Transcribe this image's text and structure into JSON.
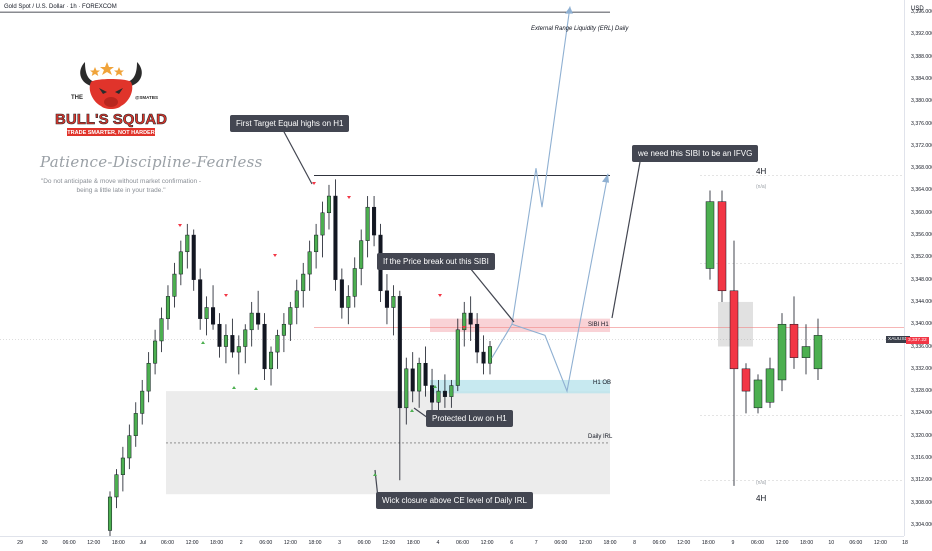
{
  "title": "Gold Spot / U.S. Dollar · 1h · FOREXCOM",
  "currency": "USD",
  "brand": {
    "logo_top": "THE",
    "logo_name": "BULL'S SQUAD",
    "logo_handle": "@SMATBS",
    "logo_slogan": "TRADE SMARTER, NOT HARDER",
    "tagline": "Patience-Discipline-Fearless",
    "note_line1": "\"Do not anticipate & move without market confirmation -",
    "note_line2": "being a little late in your trade.\""
  },
  "annotations": {
    "first_target": "First Target Equal highs on H1",
    "price_break": "If the Price break out this SIBI",
    "need_sibi": "we need this SIBI to be an IFVG",
    "protected_low": "Protected Low on H1",
    "wick_closure": "Wick closure above CE level of Daily IRL",
    "erl": "External Range Liquidity (ERL) Daily",
    "sibi_h1": "SIBI H1",
    "h1_ob": "H1 OB",
    "daily_irl": "Daily IRL",
    "tf_top": "4H",
    "tf_bottom": "4H",
    "na_top": "(n/a)",
    "na_bottom": "(n/a)",
    "price_tag": "XAUUSD",
    "price_tag_value": "3,337.22"
  },
  "chart_data": {
    "type": "candlestick",
    "symbol": "XAUUSD",
    "timeframe": "1h",
    "ylim": [
      3302,
      3398
    ],
    "y_ticks": [
      3304,
      3308,
      3312,
      3316,
      3320,
      3324,
      3328,
      3332,
      3336,
      3340,
      3344,
      3348,
      3352,
      3356,
      3360,
      3364,
      3368,
      3372,
      3376,
      3380,
      3384,
      3388,
      3392,
      3396
    ],
    "x_tick_labels": [
      "29",
      "30",
      "06:00",
      "12:00",
      "18:00",
      "Jul",
      "06:00",
      "12:00",
      "18:00",
      "2",
      "06:00",
      "12:00",
      "18:00",
      "3",
      "06:00",
      "12:00",
      "18:00",
      "4",
      "06:00",
      "12:00",
      "6",
      "7",
      "06:00",
      "12:00",
      "18:00",
      "8",
      "06:00",
      "12:00",
      "18:00",
      "9",
      "06:00",
      "12:00",
      "18:00",
      "10",
      "06:00",
      "12:00",
      "18"
    ],
    "h1_candles": [
      [
        3303,
        3310,
        3302,
        3309
      ],
      [
        3309,
        3314,
        3307,
        3313
      ],
      [
        3313,
        3318,
        3310,
        3316
      ],
      [
        3316,
        3322,
        3314,
        3320
      ],
      [
        3320,
        3326,
        3318,
        3324
      ],
      [
        3324,
        3330,
        3322,
        3328
      ],
      [
        3328,
        3335,
        3326,
        3333
      ],
      [
        3333,
        3339,
        3331,
        3337
      ],
      [
        3337,
        3343,
        3335,
        3341
      ],
      [
        3341,
        3347,
        3339,
        3345
      ],
      [
        3345,
        3351,
        3343,
        3349
      ],
      [
        3349,
        3355,
        3347,
        3353
      ],
      [
        3353,
        3358,
        3350,
        3356
      ],
      [
        3356,
        3357,
        3346,
        3348
      ],
      [
        3348,
        3350,
        3339,
        3341
      ],
      [
        3341,
        3345,
        3338,
        3343
      ],
      [
        3343,
        3347,
        3339,
        3340
      ],
      [
        3340,
        3342,
        3334,
        3336
      ],
      [
        3336,
        3340,
        3333,
        3338
      ],
      [
        3338,
        3341,
        3334,
        3335
      ],
      [
        3335,
        3338,
        3331,
        3336
      ],
      [
        3336,
        3340,
        3333,
        3339
      ],
      [
        3339,
        3344,
        3336,
        3342
      ],
      [
        3342,
        3346,
        3339,
        3340
      ],
      [
        3340,
        3342,
        3330,
        3332
      ],
      [
        3332,
        3336,
        3329,
        3335
      ],
      [
        3335,
        3339,
        3332,
        3338
      ],
      [
        3338,
        3342,
        3335,
        3340
      ],
      [
        3340,
        3344,
        3337,
        3343
      ],
      [
        3343,
        3348,
        3340,
        3346
      ],
      [
        3346,
        3351,
        3343,
        3349
      ],
      [
        3349,
        3355,
        3346,
        3353
      ],
      [
        3353,
        3358,
        3350,
        3356
      ],
      [
        3356,
        3362,
        3352,
        3360
      ],
      [
        3360,
        3365,
        3357,
        3363
      ],
      [
        3363,
        3366,
        3346,
        3348
      ],
      [
        3348,
        3350,
        3341,
        3343
      ],
      [
        3343,
        3347,
        3340,
        3345
      ],
      [
        3345,
        3352,
        3343,
        3350
      ],
      [
        3350,
        3357,
        3347,
        3355
      ],
      [
        3355,
        3363,
        3352,
        3361
      ],
      [
        3361,
        3363,
        3354,
        3356
      ],
      [
        3356,
        3358,
        3344,
        3346
      ],
      [
        3346,
        3349,
        3340,
        3343
      ],
      [
        3343,
        3347,
        3338,
        3345
      ],
      [
        3345,
        3346,
        3312,
        3325
      ],
      [
        3325,
        3334,
        3322,
        3332
      ],
      [
        3332,
        3335,
        3326,
        3328
      ],
      [
        3328,
        3334,
        3325,
        3333
      ],
      [
        3333,
        3336,
        3327,
        3329
      ],
      [
        3329,
        3332,
        3324,
        3326
      ],
      [
        3326,
        3330,
        3323,
        3328
      ],
      [
        3328,
        3331,
        3325,
        3327
      ],
      [
        3327,
        3330,
        3325,
        3329
      ],
      [
        3329,
        3341,
        3328,
        3339
      ],
      [
        3339,
        3344,
        3336,
        3342
      ],
      [
        3342,
        3345,
        3337,
        3340
      ],
      [
        3340,
        3342,
        3333,
        3335
      ],
      [
        3335,
        3338,
        3331,
        3333
      ],
      [
        3333,
        3337,
        3331,
        3336
      ]
    ],
    "h4_candles": [
      [
        3350,
        3364,
        3348,
        3362
      ],
      [
        3362,
        3364,
        3344,
        3346
      ],
      [
        3346,
        3355,
        3311,
        3332
      ],
      [
        3332,
        3333,
        3324,
        3328
      ],
      [
        3325,
        3331,
        3324,
        3330
      ],
      [
        3326,
        3334,
        3325,
        3332
      ],
      [
        3330,
        3342,
        3328,
        3340
      ],
      [
        3340,
        3345,
        3332,
        3334
      ],
      [
        3334,
        3340,
        3331,
        3336
      ],
      [
        3332,
        3341,
        3330,
        3338
      ]
    ],
    "levels": {
      "erl_daily": 3396,
      "equal_highs_h1": 3366.7,
      "sibi_top": 3341,
      "sibi_bottom": 3338.6,
      "ce_line": 3339.4,
      "h1_ob_top": 3330,
      "h1_ob_bottom": 3327.6,
      "daily_irl_zone_top": 3328,
      "daily_irl_zone_bottom": 3309.5,
      "daily_irl_ce": 3318.7,
      "current_price": 3337.22
    },
    "colors": {
      "up": "#4caf50",
      "down": "#f23645",
      "wick": "#131722",
      "sibi_zone": "#f7c7cc",
      "ob_zone": "#b9e3ec",
      "irl_zone": "#e6e6e6",
      "path": "#8fb0d2"
    }
  }
}
